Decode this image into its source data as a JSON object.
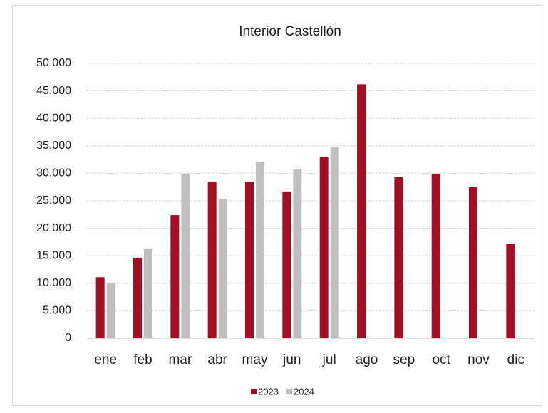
{
  "chart_data": {
    "type": "bar",
    "title": "Interior Castellón",
    "categories": [
      "ene",
      "feb",
      "mar",
      "abr",
      "may",
      "jun",
      "jul",
      "ago",
      "sep",
      "oct",
      "nov",
      "dic"
    ],
    "series": [
      {
        "name": "2023",
        "color": "#a50f24",
        "values": [
          11100,
          14600,
          22400,
          28500,
          28500,
          26700,
          33000,
          46200,
          29300,
          29900,
          27500,
          17200
        ]
      },
      {
        "name": "2024",
        "color": "#bfbfbf",
        "values": [
          10100,
          16300,
          29900,
          25400,
          32100,
          30700,
          34700,
          null,
          null,
          null,
          null,
          null
        ]
      }
    ],
    "ylim": [
      0,
      50000
    ],
    "yticks": [
      0,
      {
        "value": 5000,
        "label": "5.000"
      },
      {
        "value": 10000,
        "label": "10.000"
      },
      {
        "value": 15000,
        "label": "15.000"
      },
      {
        "value": 20000,
        "label": "20.000"
      },
      {
        "value": 25000,
        "label": "25.000"
      },
      {
        "value": 30000,
        "label": "30.000"
      },
      {
        "value": 35000,
        "label": "35.000"
      },
      {
        "value": 40000,
        "label": "40.000"
      },
      {
        "value": 45000,
        "label": "45.000"
      },
      {
        "value": 50000,
        "label": "50.000"
      }
    ],
    "grid": true,
    "legend": "bottom"
  }
}
